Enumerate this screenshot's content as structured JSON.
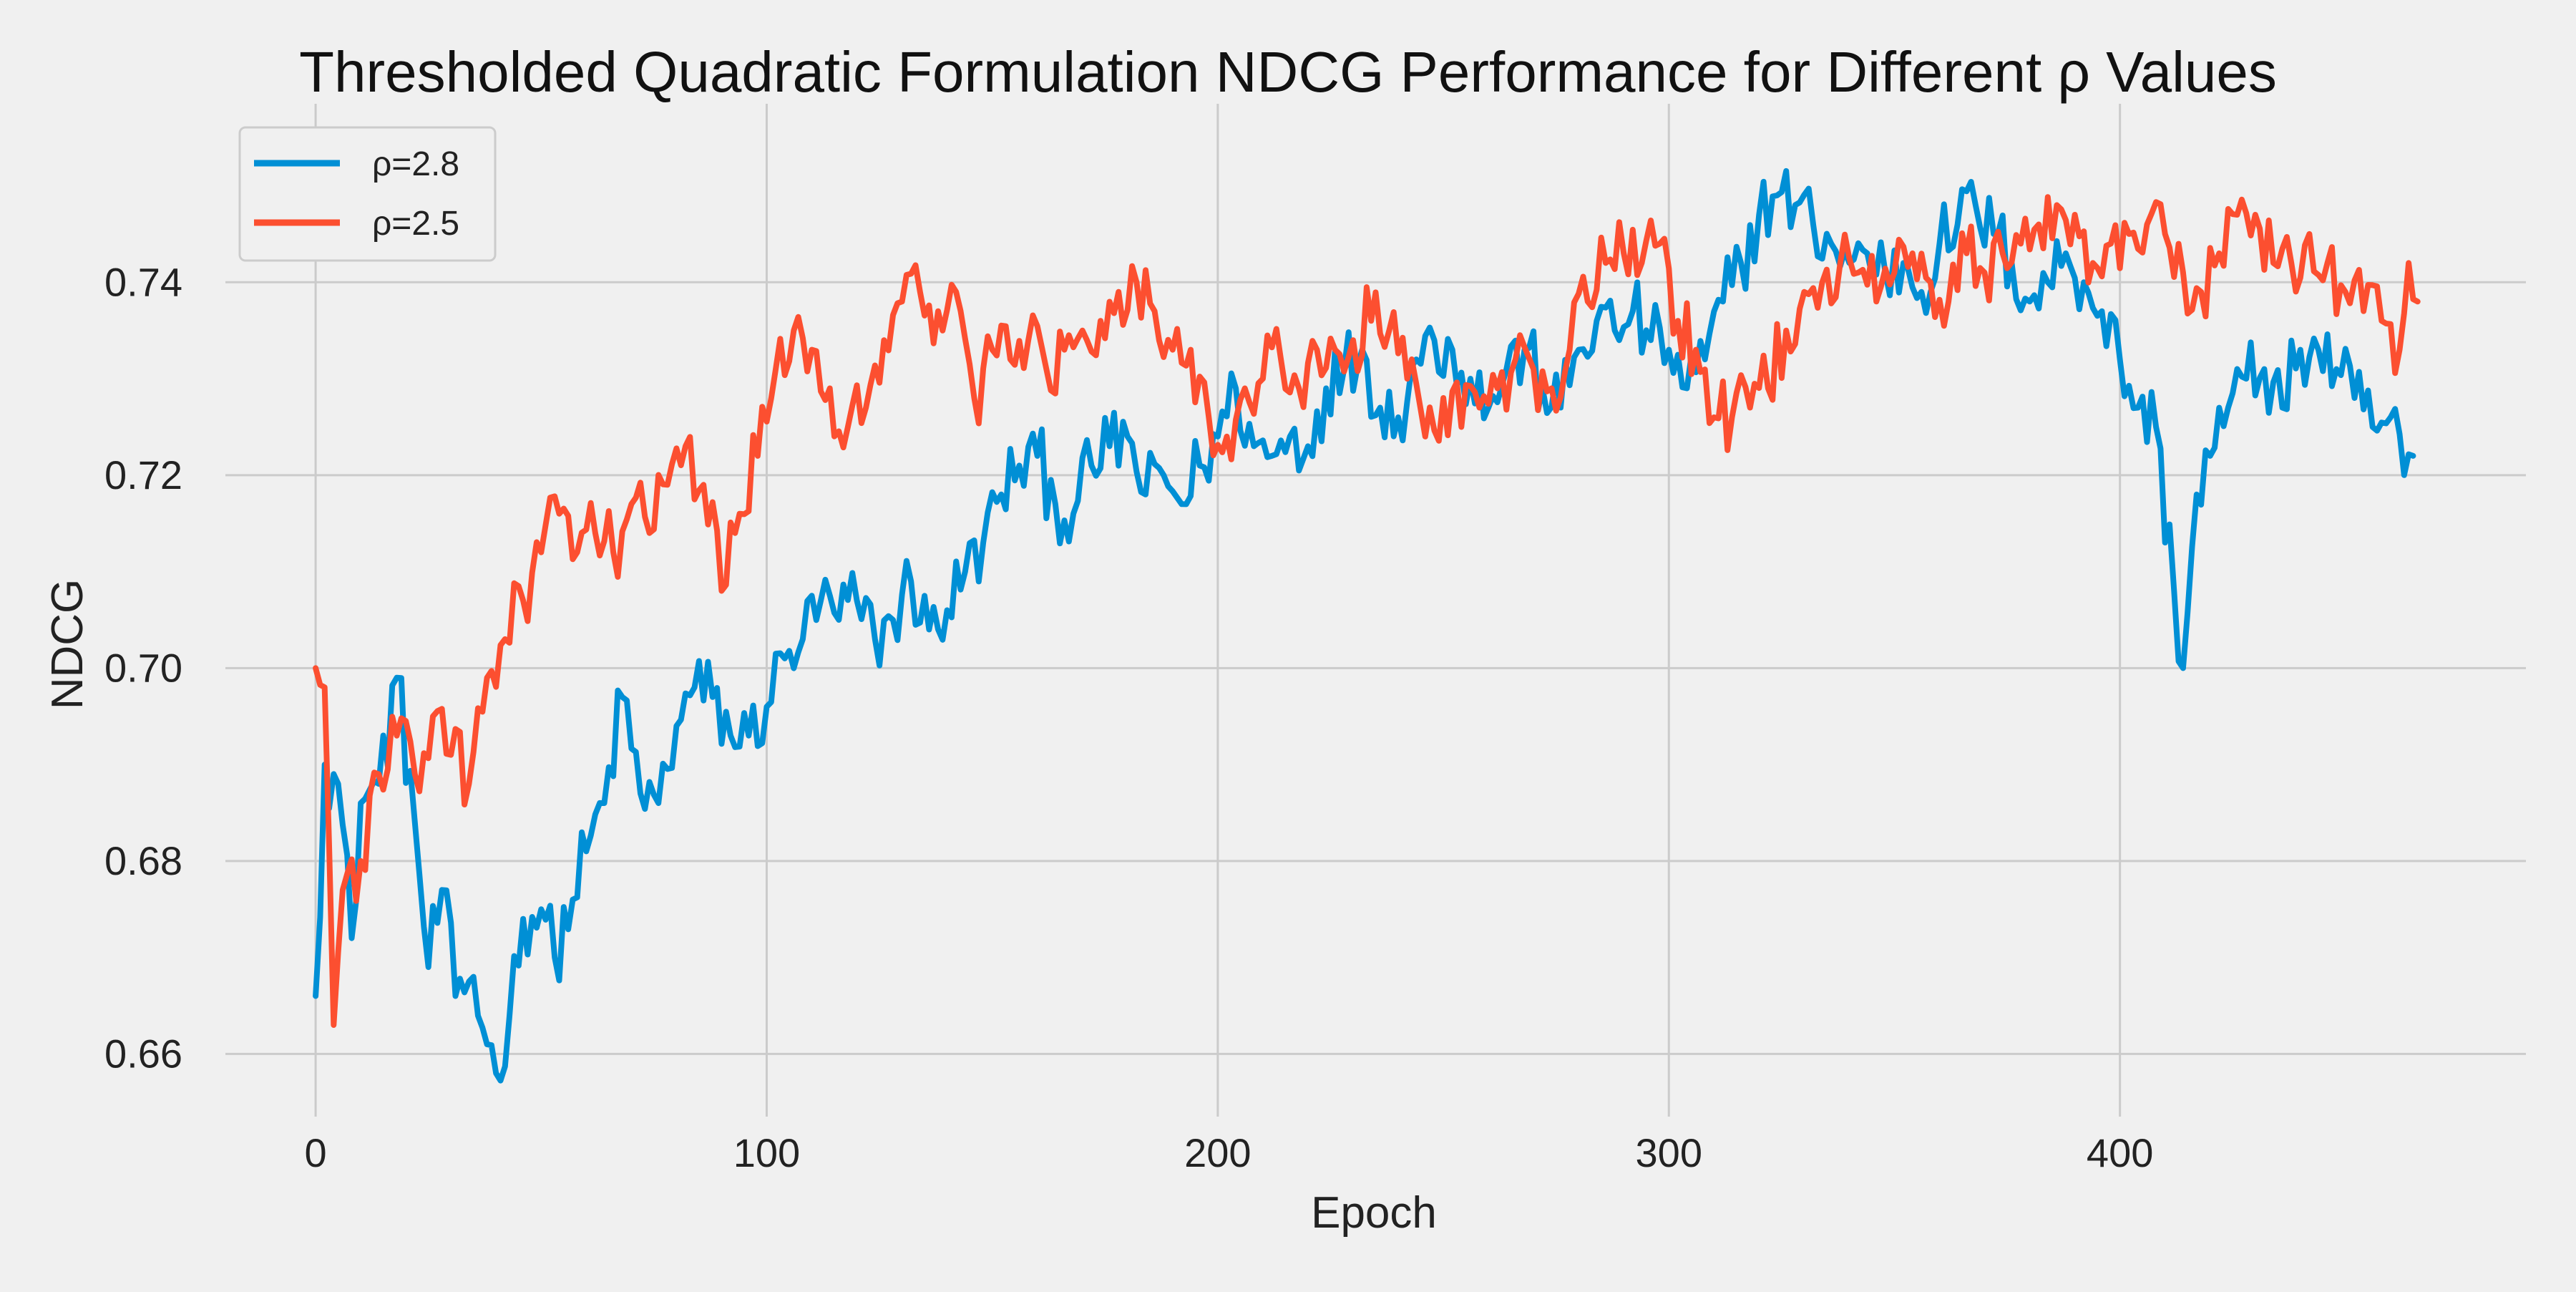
{
  "chart_data": {
    "type": "line",
    "title": "Thresholded Quadratic Formulation NDCG Performance for Different ρ Values",
    "xlabel": "Epoch",
    "ylabel": "NDCG",
    "xlim": [
      -20,
      490
    ],
    "ylim": [
      0.6535,
      0.7585
    ],
    "xticks": [
      0,
      100,
      200,
      300,
      400
    ],
    "xtick_labels": [
      "0",
      "100",
      "200",
      "300",
      "400"
    ],
    "yticks": [
      0.66,
      0.68,
      0.7,
      0.72,
      0.74
    ],
    "ytick_labels": [
      "0.66",
      "0.68",
      "0.70",
      "0.72",
      "0.74"
    ],
    "grid": true,
    "legend_position": "top-left",
    "series": [
      {
        "name": "ρ=2.8",
        "color": "#008fd5",
        "anchors": [
          [
            0,
            0.666
          ],
          [
            2,
            0.69
          ],
          [
            5,
            0.688
          ],
          [
            8,
            0.672
          ],
          [
            10,
            0.686
          ],
          [
            14,
            0.688
          ],
          [
            18,
            0.699
          ],
          [
            22,
            0.684
          ],
          [
            25,
            0.669
          ],
          [
            28,
            0.677
          ],
          [
            31,
            0.666
          ],
          [
            35,
            0.668
          ],
          [
            38,
            0.661
          ],
          [
            40,
            0.658
          ],
          [
            43,
            0.664
          ],
          [
            46,
            0.674
          ],
          [
            50,
            0.675
          ],
          [
            53,
            0.67
          ],
          [
            57,
            0.676
          ],
          [
            60,
            0.681
          ],
          [
            64,
            0.686
          ],
          [
            68,
            0.697
          ],
          [
            72,
            0.687
          ],
          [
            76,
            0.686
          ],
          [
            80,
            0.694
          ],
          [
            84,
            0.698
          ],
          [
            88,
            0.697
          ],
          [
            92,
            0.693
          ],
          [
            96,
            0.693
          ],
          [
            100,
            0.696
          ],
          [
            104,
            0.701
          ],
          [
            108,
            0.703
          ],
          [
            112,
            0.707
          ],
          [
            116,
            0.705
          ],
          [
            120,
            0.707
          ],
          [
            124,
            0.703
          ],
          [
            128,
            0.705
          ],
          [
            132,
            0.709
          ],
          [
            136,
            0.704
          ],
          [
            140,
            0.706
          ],
          [
            144,
            0.71
          ],
          [
            148,
            0.713
          ],
          [
            152,
            0.718
          ],
          [
            156,
            0.721
          ],
          [
            160,
            0.722
          ],
          [
            164,
            0.717
          ],
          [
            168,
            0.716
          ],
          [
            172,
            0.721
          ],
          [
            176,
            0.723
          ],
          [
            180,
            0.724
          ],
          [
            184,
            0.718
          ],
          [
            188,
            0.72
          ],
          [
            192,
            0.717
          ],
          [
            196,
            0.721
          ],
          [
            200,
            0.724
          ],
          [
            204,
            0.729
          ],
          [
            208,
            0.723
          ],
          [
            212,
            0.722
          ],
          [
            216,
            0.724
          ],
          [
            220,
            0.723
          ],
          [
            224,
            0.729
          ],
          [
            228,
            0.731
          ],
          [
            232,
            0.733
          ],
          [
            236,
            0.727
          ],
          [
            240,
            0.726
          ],
          [
            244,
            0.732
          ],
          [
            248,
            0.734
          ],
          [
            252,
            0.733
          ],
          [
            256,
            0.73
          ],
          [
            260,
            0.727
          ],
          [
            264,
            0.731
          ],
          [
            268,
            0.733
          ],
          [
            272,
            0.729
          ],
          [
            276,
            0.727
          ],
          [
            280,
            0.733
          ],
          [
            284,
            0.736
          ],
          [
            288,
            0.735
          ],
          [
            292,
            0.737
          ],
          [
            296,
            0.734
          ],
          [
            300,
            0.733
          ],
          [
            304,
            0.729
          ],
          [
            308,
            0.732
          ],
          [
            312,
            0.738
          ],
          [
            316,
            0.742
          ],
          [
            320,
            0.747
          ],
          [
            324,
            0.749
          ],
          [
            328,
            0.748
          ],
          [
            332,
            0.746
          ],
          [
            336,
            0.744
          ],
          [
            340,
            0.742
          ],
          [
            344,
            0.743
          ],
          [
            348,
            0.741
          ],
          [
            352,
            0.742
          ],
          [
            356,
            0.739
          ],
          [
            360,
            0.744
          ],
          [
            364,
            0.746
          ],
          [
            368,
            0.748
          ],
          [
            372,
            0.745
          ],
          [
            376,
            0.742
          ],
          [
            380,
            0.738
          ],
          [
            384,
            0.74
          ],
          [
            388,
            0.743
          ],
          [
            392,
            0.74
          ],
          [
            396,
            0.737
          ],
          [
            400,
            0.732
          ],
          [
            404,
            0.727
          ],
          [
            408,
            0.725
          ],
          [
            412,
            0.708
          ],
          [
            414,
            0.7
          ],
          [
            417,
            0.718
          ],
          [
            420,
            0.722
          ],
          [
            424,
            0.727
          ],
          [
            428,
            0.73
          ],
          [
            432,
            0.731
          ],
          [
            436,
            0.727
          ],
          [
            440,
            0.733
          ],
          [
            444,
            0.733
          ],
          [
            448,
            0.731
          ],
          [
            452,
            0.728
          ],
          [
            456,
            0.725
          ],
          [
            460,
            0.726
          ],
          [
            463,
            0.72
          ],
          [
            465,
            0.722
          ]
        ]
      },
      {
        "name": "ρ=2.5",
        "color": "#fc4f30",
        "anchors": [
          [
            0,
            0.7
          ],
          [
            2,
            0.698
          ],
          [
            4,
            0.663
          ],
          [
            6,
            0.677
          ],
          [
            10,
            0.68
          ],
          [
            14,
            0.689
          ],
          [
            18,
            0.693
          ],
          [
            22,
            0.689
          ],
          [
            26,
            0.695
          ],
          [
            30,
            0.691
          ],
          [
            34,
            0.688
          ],
          [
            38,
            0.699
          ],
          [
            42,
            0.703
          ],
          [
            46,
            0.707
          ],
          [
            50,
            0.712
          ],
          [
            54,
            0.716
          ],
          [
            58,
            0.712
          ],
          [
            62,
            0.714
          ],
          [
            66,
            0.712
          ],
          [
            70,
            0.717
          ],
          [
            74,
            0.714
          ],
          [
            78,
            0.719
          ],
          [
            82,
            0.723
          ],
          [
            86,
            0.719
          ],
          [
            90,
            0.708
          ],
          [
            94,
            0.716
          ],
          [
            98,
            0.722
          ],
          [
            102,
            0.731
          ],
          [
            106,
            0.735
          ],
          [
            110,
            0.733
          ],
          [
            114,
            0.729
          ],
          [
            118,
            0.725
          ],
          [
            122,
            0.727
          ],
          [
            126,
            0.734
          ],
          [
            130,
            0.738
          ],
          [
            134,
            0.739
          ],
          [
            138,
            0.737
          ],
          [
            142,
            0.739
          ],
          [
            146,
            0.728
          ],
          [
            150,
            0.733
          ],
          [
            154,
            0.732
          ],
          [
            158,
            0.734
          ],
          [
            162,
            0.731
          ],
          [
            166,
            0.733
          ],
          [
            170,
            0.735
          ],
          [
            174,
            0.736
          ],
          [
            178,
            0.739
          ],
          [
            182,
            0.74
          ],
          [
            186,
            0.737
          ],
          [
            190,
            0.733
          ],
          [
            194,
            0.733
          ],
          [
            198,
            0.726
          ],
          [
            202,
            0.724
          ],
          [
            206,
            0.729
          ],
          [
            210,
            0.73
          ],
          [
            214,
            0.732
          ],
          [
            218,
            0.729
          ],
          [
            222,
            0.733
          ],
          [
            226,
            0.733
          ],
          [
            230,
            0.734
          ],
          [
            234,
            0.736
          ],
          [
            238,
            0.735
          ],
          [
            242,
            0.73
          ],
          [
            246,
            0.724
          ],
          [
            250,
            0.728
          ],
          [
            254,
            0.725
          ],
          [
            258,
            0.727
          ],
          [
            262,
            0.729
          ],
          [
            266,
            0.732
          ],
          [
            270,
            0.731
          ],
          [
            274,
            0.729
          ],
          [
            278,
            0.733
          ],
          [
            282,
            0.738
          ],
          [
            286,
            0.742
          ],
          [
            290,
            0.743
          ],
          [
            294,
            0.742
          ],
          [
            298,
            0.744
          ],
          [
            302,
            0.736
          ],
          [
            306,
            0.733
          ],
          [
            310,
            0.726
          ],
          [
            314,
            0.726
          ],
          [
            318,
            0.727
          ],
          [
            322,
            0.729
          ],
          [
            326,
            0.735
          ],
          [
            330,
            0.739
          ],
          [
            334,
            0.74
          ],
          [
            338,
            0.742
          ],
          [
            342,
            0.741
          ],
          [
            346,
            0.738
          ],
          [
            350,
            0.741
          ],
          [
            354,
            0.743
          ],
          [
            358,
            0.74
          ],
          [
            362,
            0.738
          ],
          [
            366,
            0.743
          ],
          [
            370,
            0.741
          ],
          [
            374,
            0.743
          ],
          [
            378,
            0.744
          ],
          [
            382,
            0.746
          ],
          [
            386,
            0.748
          ],
          [
            390,
            0.747
          ],
          [
            394,
            0.742
          ],
          [
            398,
            0.744
          ],
          [
            402,
            0.745
          ],
          [
            406,
            0.746
          ],
          [
            410,
            0.745
          ],
          [
            414,
            0.741
          ],
          [
            418,
            0.739
          ],
          [
            422,
            0.743
          ],
          [
            426,
            0.747
          ],
          [
            430,
            0.747
          ],
          [
            434,
            0.742
          ],
          [
            438,
            0.742
          ],
          [
            442,
            0.745
          ],
          [
            446,
            0.742
          ],
          [
            450,
            0.739
          ],
          [
            454,
            0.737
          ],
          [
            458,
            0.736
          ],
          [
            462,
            0.733
          ],
          [
            464,
            0.742
          ],
          [
            466,
            0.738
          ]
        ]
      }
    ]
  }
}
